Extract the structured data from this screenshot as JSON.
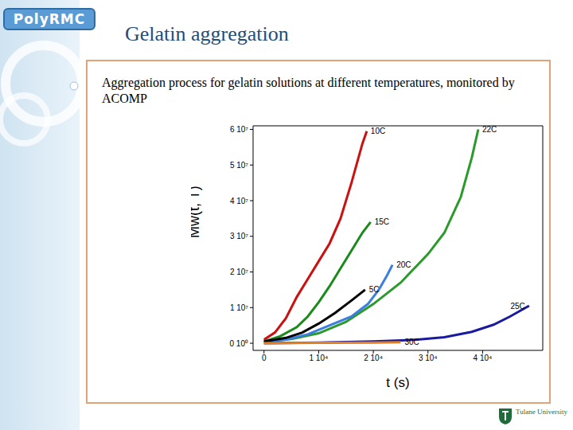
{
  "slide": {
    "logo": "PolyRMC",
    "title": "Gelatin aggregation",
    "text": "Aggregation process for gelatin solutions at different temperatures, monitored by ACOMP",
    "footer_logo": "Tulane University"
  },
  "chart_data": {
    "type": "line",
    "xlabel": "t (s)",
    "ylabel": "Mw(t, T)",
    "xlim": [
      -2000,
      51000
    ],
    "ylim": [
      -2000000,
      61000000
    ],
    "xticks": [
      0,
      {
        "value": 10000,
        "label": "1 10⁴"
      },
      {
        "value": 20000,
        "label": "2 10⁴"
      },
      {
        "value": 30000,
        "label": "3 10⁴"
      },
      {
        "value": 40000,
        "label": "4 10⁴"
      }
    ],
    "yticks": [
      {
        "value": 0,
        "label": "0 10⁰"
      },
      {
        "value": 10000000,
        "label": "1 10⁷"
      },
      {
        "value": 20000000,
        "label": "2 10⁷"
      },
      {
        "value": 30000000,
        "label": "3 10⁷"
      },
      {
        "value": 40000000,
        "label": "4 10⁷"
      },
      {
        "value": 50000000,
        "label": "5 10⁷"
      },
      {
        "value": 60000000,
        "label": "6 10⁷"
      }
    ],
    "grid": false,
    "line_style": "solid",
    "series": [
      {
        "name": "10C",
        "color": "#cc1010",
        "x": [
          0,
          2000,
          4000,
          6000,
          8000,
          10000,
          12000,
          14000,
          16000,
          18000,
          18800
        ],
        "values": [
          1000000,
          3000000,
          7000000,
          13000000,
          18000000,
          23000000,
          28000000,
          35000000,
          45000000,
          56000000,
          59500000
        ]
      },
      {
        "name": "15C",
        "color": "#1a8a1a",
        "x": [
          0,
          3000,
          6000,
          8000,
          10000,
          12000,
          14000,
          16000,
          18000,
          19500
        ],
        "values": [
          500000,
          2000000,
          4500000,
          7500000,
          11500000,
          16000000,
          21000000,
          26000000,
          31000000,
          34000000
        ]
      },
      {
        "name": "22C",
        "color": "#2a9a2a",
        "x": [
          0,
          5000,
          10000,
          15000,
          20000,
          25000,
          30000,
          33000,
          36000,
          38000,
          39200
        ],
        "values": [
          500000,
          1200000,
          2800000,
          6000000,
          11000000,
          17000000,
          25000000,
          31000000,
          41000000,
          52000000,
          60000000
        ]
      },
      {
        "name": "20C",
        "color": "#3a7fe0",
        "x": [
          0,
          4000,
          8000,
          12000,
          16000,
          19000,
          21000,
          22500,
          23500
        ],
        "values": [
          300000,
          1000000,
          2500000,
          5000000,
          7500000,
          11000000,
          15000000,
          19000000,
          22000000
        ]
      },
      {
        "name": "5C",
        "color": "#000000",
        "x": [
          0,
          4000,
          7000,
          10000,
          13000,
          16000,
          18500
        ],
        "values": [
          500000,
          1500000,
          3000000,
          5500000,
          8500000,
          12000000,
          15000000
        ]
      },
      {
        "name": "25C",
        "color": "#1a1aa0",
        "x": [
          0,
          10000,
          20000,
          28000,
          33000,
          38000,
          42000,
          45000,
          48500
        ],
        "values": [
          0,
          200000,
          500000,
          1000000,
          1700000,
          3200000,
          5200000,
          7500000,
          10500000
        ]
      },
      {
        "name": "30C",
        "color": "#e08020",
        "x": [
          0,
          10000,
          20000,
          25000
        ],
        "values": [
          0,
          100000,
          200000,
          300000
        ]
      }
    ]
  }
}
